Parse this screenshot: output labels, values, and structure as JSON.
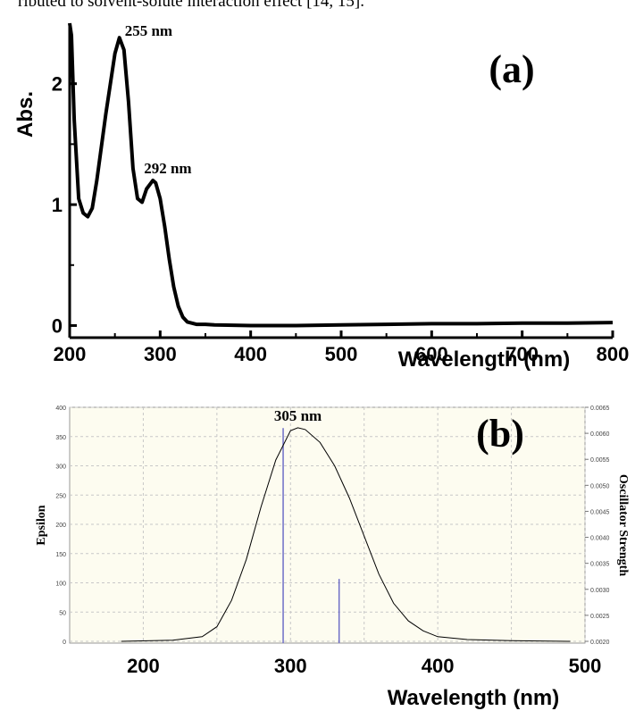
{
  "caption_fragment": "ributed to solvent-solute interaction effect [14, 15].",
  "chart_data": [
    {
      "panel": "(a)",
      "type": "line",
      "xlabel": "Wavelength (nm)",
      "ylabel": "Abs.",
      "xlim": [
        200,
        800
      ],
      "ylim": [
        -0.1,
        2.5
      ],
      "x_ticks": [
        200,
        300,
        400,
        500,
        600,
        700,
        800
      ],
      "y_ticks": [
        0,
        1,
        2
      ],
      "grid": false,
      "color": "#000000",
      "x": [
        200,
        202,
        205,
        210,
        215,
        220,
        225,
        230,
        240,
        250,
        255,
        260,
        265,
        270,
        275,
        280,
        285,
        290,
        292,
        295,
        300,
        305,
        310,
        315,
        320,
        325,
        330,
        340,
        350,
        360,
        400,
        450,
        500,
        550,
        600,
        650,
        700,
        750,
        800
      ],
      "y": [
        2.5,
        2.4,
        1.7,
        1.05,
        0.93,
        0.9,
        0.97,
        1.2,
        1.75,
        2.25,
        2.38,
        2.28,
        1.85,
        1.3,
        1.05,
        1.02,
        1.13,
        1.18,
        1.2,
        1.18,
        1.05,
        0.82,
        0.55,
        0.32,
        0.16,
        0.07,
        0.03,
        0.01,
        0.01,
        0.005,
        0.0,
        0.0,
        0.005,
        0.01,
        0.015,
        0.015,
        0.02,
        0.02,
        0.025
      ],
      "annotations": [
        {
          "text": "255 nm",
          "x": 255,
          "y": 2.38
        },
        {
          "text": "292 nm",
          "x": 292,
          "y": 1.2
        }
      ]
    },
    {
      "panel": "(b)",
      "type": "line",
      "xlabel": "Wavelength (nm)",
      "ylabel": "Epsilon",
      "y2label": "Oscillator Strength",
      "xlim": [
        150,
        500
      ],
      "ylim": [
        0,
        400
      ],
      "y2lim": [
        0.002,
        0.0065
      ],
      "x_ticks": [
        200,
        300,
        400,
        500
      ],
      "y_ticks": [
        0,
        50,
        100,
        150,
        200,
        250,
        300,
        350,
        400
      ],
      "y2_ticks": [
        "0.0020",
        "0.0025",
        "0.0030",
        "0.0035",
        "0.0040",
        "0.0045",
        "0.0050",
        "0.0055",
        "0.0060",
        "0.0065"
      ],
      "grid": true,
      "background": "#fdfcf0",
      "curve_color": "#000000",
      "stick_color": "#6f6fc7",
      "x": [
        185,
        220,
        240,
        250,
        260,
        270,
        280,
        290,
        300,
        305,
        310,
        320,
        330,
        340,
        350,
        360,
        370,
        380,
        390,
        400,
        420,
        450,
        490
      ],
      "y": [
        0,
        2,
        8,
        25,
        70,
        140,
        230,
        310,
        360,
        365,
        362,
        340,
        300,
        245,
        180,
        115,
        65,
        35,
        18,
        8,
        3,
        1,
        0
      ],
      "sticks": [
        {
          "x": 295,
          "oscillator_strength": 0.0061
        },
        {
          "x": 333,
          "oscillator_strength": 0.0032
        }
      ],
      "annotations": [
        {
          "text": "305 nm",
          "x": 305,
          "y": 365
        }
      ]
    }
  ],
  "panel_a_label": "(a)",
  "panel_b_label": "(b)"
}
